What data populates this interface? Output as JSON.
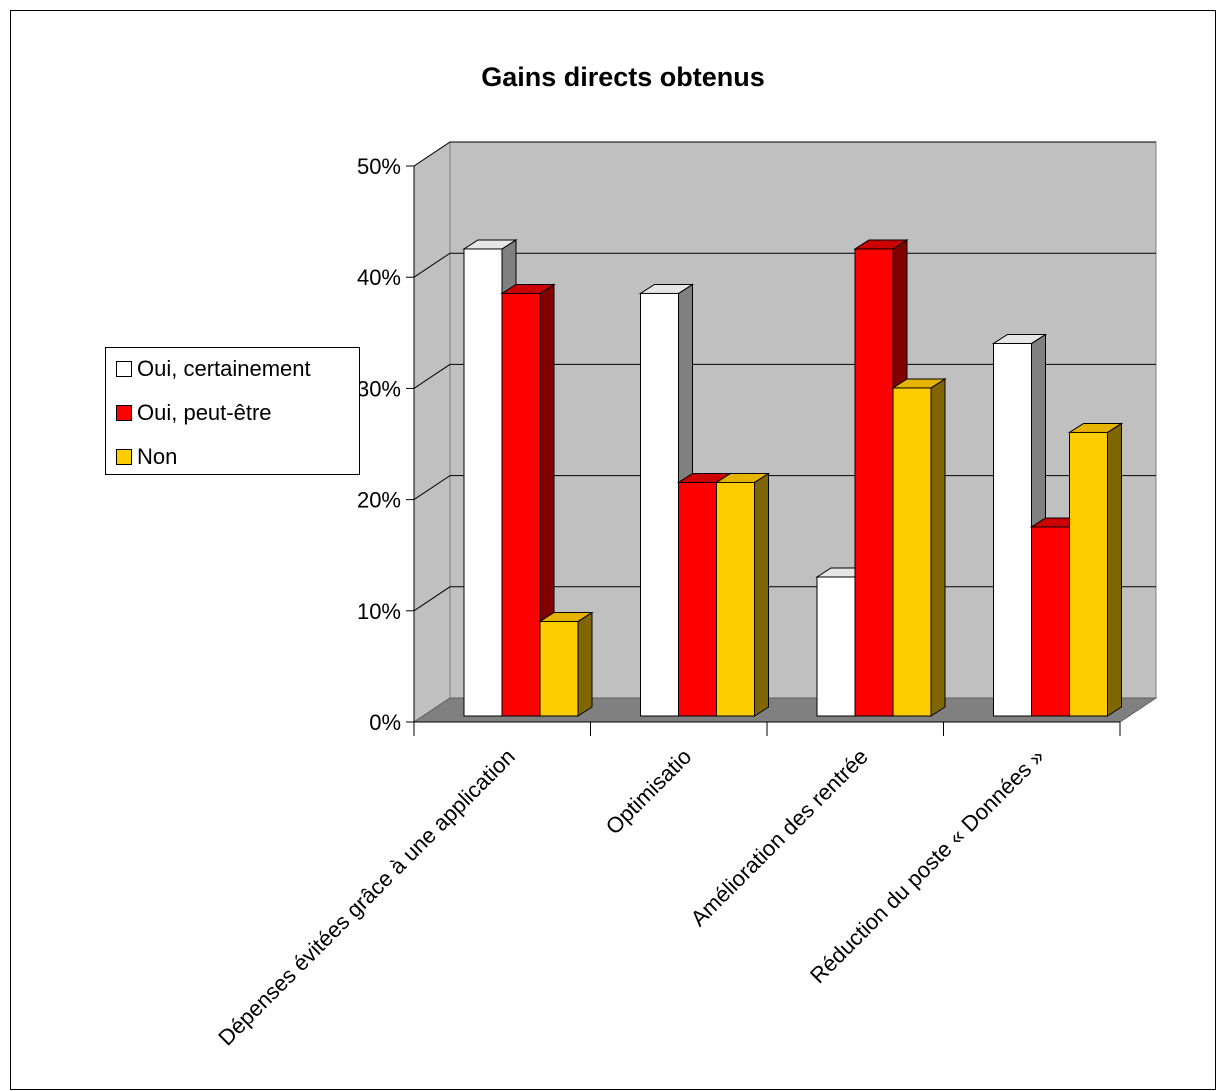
{
  "chart_data": {
    "type": "bar",
    "title": "Gains directs obtenus",
    "categories": [
      "Dépenses évitées grâce à une application",
      "Optimisation",
      "Amélioration des rentrées",
      "Réduction du poste « Données »"
    ],
    "category_labels_visible": [
      "Dépenses évitées grâce à une application",
      "Optimisatio",
      "Amélioration des rentrée",
      "Réduction du poste « Données »"
    ],
    "series": [
      {
        "name": "Oui, certainement",
        "values": [
          42,
          38,
          12.5,
          33.5
        ]
      },
      {
        "name": "Oui, peut-être",
        "values": [
          38,
          21,
          42,
          17
        ]
      },
      {
        "name": "Non",
        "values": [
          8.5,
          21,
          29.5,
          25.5
        ]
      }
    ],
    "y_ticks": [
      "0%",
      "10%",
      "20%",
      "30%",
      "40%",
      "50%"
    ],
    "ylim": [
      0,
      50
    ],
    "grid": true,
    "legend_position": "left",
    "projection": "3d-column",
    "colors": {
      "series": [
        "#ffffff",
        "#ff0000",
        "#ffcc00"
      ],
      "series_side": [
        "#808080",
        "#800000",
        "#806600"
      ],
      "series_top": [
        "#e6e6e6",
        "#cc0000",
        "#e6b400"
      ],
      "wall": "#c0c0c0",
      "floor": "#808080"
    }
  }
}
